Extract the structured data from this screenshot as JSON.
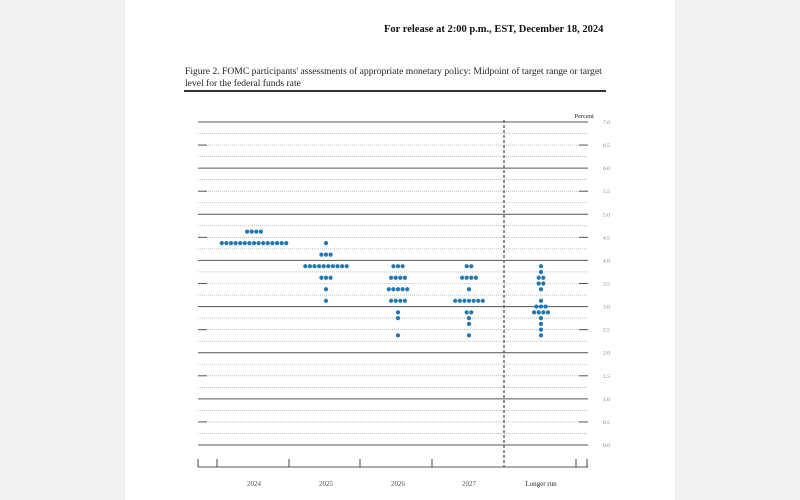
{
  "header": {
    "release": "For release at 2:00 p.m., EST, December 18, 2024"
  },
  "figure": {
    "caption": "Figure 2.  FOMC participants' assessments of appropriate monetary policy:  Midpoint of target range or target level for the federal funds rate"
  },
  "chart_data": {
    "type": "scatter",
    "subtype": "dot-plot",
    "ylabel": "Percent",
    "ylim": [
      0,
      7
    ],
    "y_ticks": [
      "0.0",
      "0.5",
      "1.0",
      "1.5",
      "2.0",
      "2.5",
      "3.0",
      "3.5",
      "4.0",
      "4.5",
      "5.0",
      "5.5",
      "6.0",
      "6.5",
      "7.0"
    ],
    "y_tick_position": "right",
    "grid": true,
    "dot_color": "#1f78b4",
    "categories": [
      "2024",
      "2025",
      "2026",
      "2027",
      "Longer run"
    ],
    "series": [
      {
        "category": "2024",
        "points": [
          {
            "y": 4.625,
            "count": 4
          },
          {
            "y": 4.375,
            "count": 15
          }
        ]
      },
      {
        "category": "2025",
        "points": [
          {
            "y": 4.375,
            "count": 1
          },
          {
            "y": 4.125,
            "count": 3
          },
          {
            "y": 3.875,
            "count": 10
          },
          {
            "y": 3.625,
            "count": 3
          },
          {
            "y": 3.375,
            "count": 1
          },
          {
            "y": 3.125,
            "count": 1
          }
        ]
      },
      {
        "category": "2026",
        "points": [
          {
            "y": 3.875,
            "count": 3
          },
          {
            "y": 3.625,
            "count": 4
          },
          {
            "y": 3.375,
            "count": 5
          },
          {
            "y": 3.125,
            "count": 4
          },
          {
            "y": 2.875,
            "count": 1
          },
          {
            "y": 2.75,
            "count": 1
          },
          {
            "y": 2.375,
            "count": 1
          }
        ]
      },
      {
        "category": "2027",
        "points": [
          {
            "y": 3.875,
            "count": 2
          },
          {
            "y": 3.625,
            "count": 4
          },
          {
            "y": 3.375,
            "count": 1
          },
          {
            "y": 3.125,
            "count": 7
          },
          {
            "y": 2.875,
            "count": 2
          },
          {
            "y": 2.75,
            "count": 1
          },
          {
            "y": 2.625,
            "count": 1
          },
          {
            "y": 2.375,
            "count": 1
          }
        ]
      },
      {
        "category": "Longer run",
        "points": [
          {
            "y": 3.875,
            "count": 1
          },
          {
            "y": 3.75,
            "count": 1
          },
          {
            "y": 3.625,
            "count": 2
          },
          {
            "y": 3.5,
            "count": 2
          },
          {
            "y": 3.375,
            "count": 1
          },
          {
            "y": 3.125,
            "count": 1
          },
          {
            "y": 3.0,
            "count": 3
          },
          {
            "y": 2.875,
            "count": 4
          },
          {
            "y": 2.75,
            "count": 1
          },
          {
            "y": 2.625,
            "count": 1
          },
          {
            "y": 2.5,
            "count": 1
          },
          {
            "y": 2.375,
            "count": 1
          }
        ]
      }
    ]
  }
}
